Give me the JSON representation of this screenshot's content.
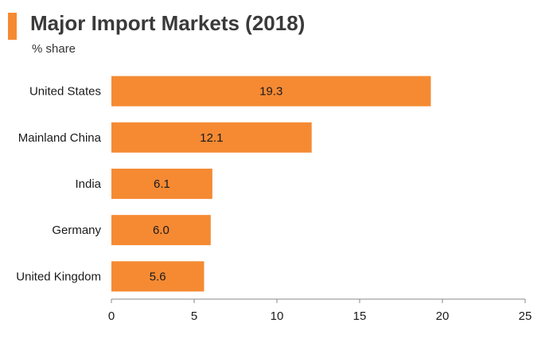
{
  "header": {
    "title": "Major Import Markets (2018)",
    "subtitle": "% share",
    "accent_color": "#F58A33"
  },
  "chart_data": {
    "type": "bar",
    "orientation": "horizontal",
    "categories": [
      "United States",
      "Mainland China",
      "India",
      "Germany",
      "United Kingdom"
    ],
    "values": [
      19.3,
      12.1,
      6.1,
      6.0,
      5.6
    ],
    "value_labels": [
      "19.3",
      "12.1",
      "6.1",
      "6.0",
      "5.6"
    ],
    "title": "Major Import Markets (2018)",
    "subtitle": "% share",
    "xlabel": "",
    "ylabel": "",
    "xlim": [
      0,
      25
    ],
    "x_ticks": [
      0,
      5,
      10,
      15,
      20,
      25
    ],
    "grid": false,
    "bar_color": "#F58A33",
    "axis_color": "#888888"
  }
}
